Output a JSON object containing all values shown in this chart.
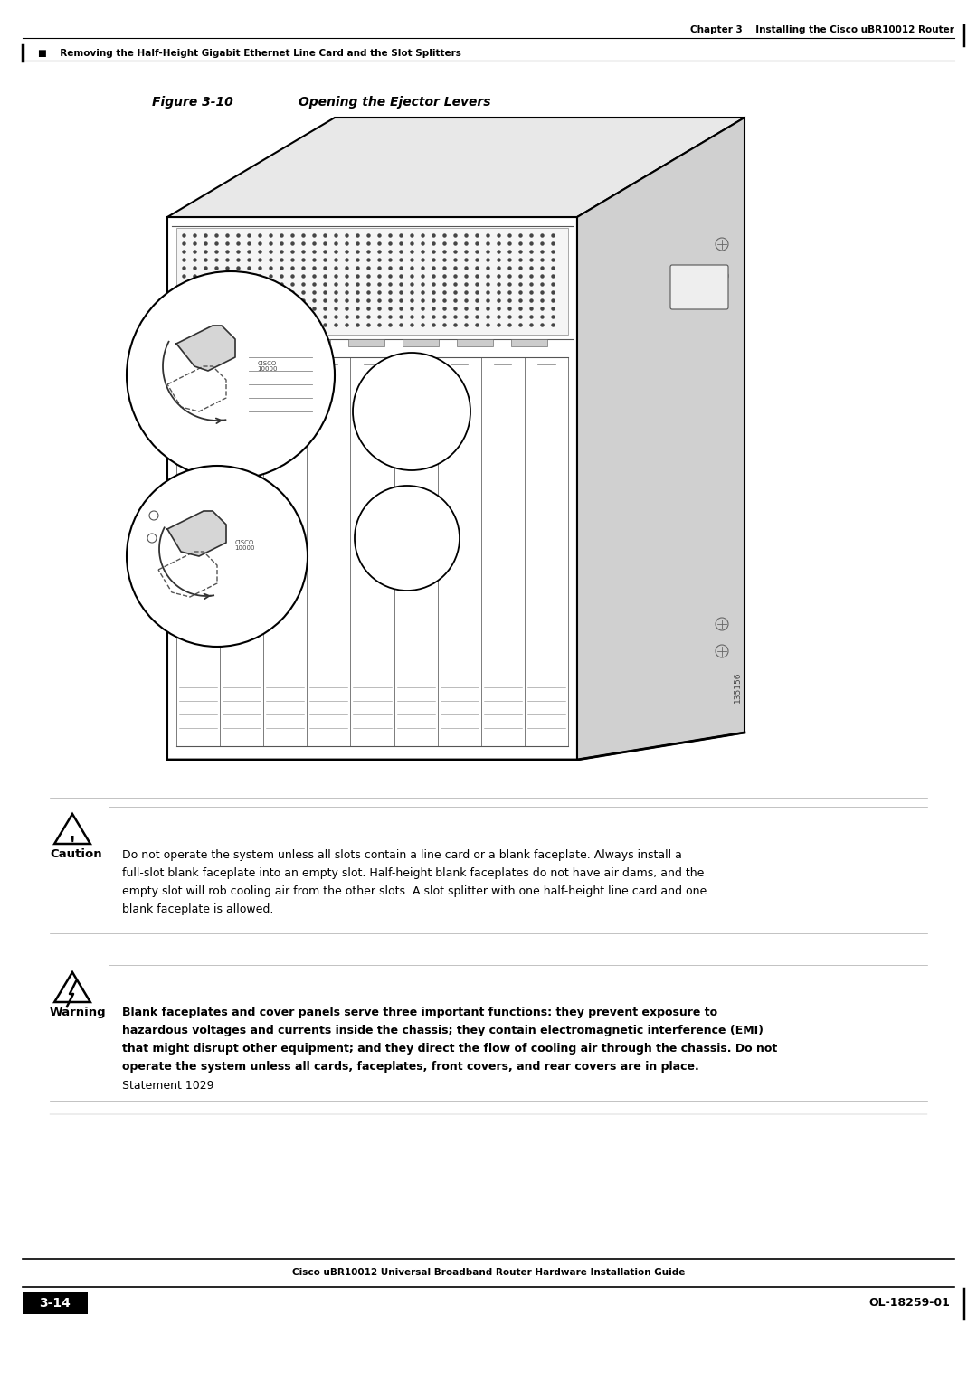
{
  "page_bg": "#ffffff",
  "top_header_text": "Chapter 3    Installing the Cisco uBR10012 Router",
  "top_subheader_text": "■    Removing the Half-Height Gigabit Ethernet Line Card and the Slot Splitters",
  "figure_label": "Figure 3-10",
  "figure_title": "Opening the Ejector Levers",
  "figure_number_vertical": "135156",
  "caution_label": "Caution",
  "caution_lines": [
    "Do not operate the system unless all slots contain a line card or a blank faceplate. Always install a",
    "full-slot blank faceplate into an empty slot. Half-height blank faceplates do not have air dams, and the",
    "empty slot will rob cooling air from the other slots. A slot splitter with one half-height line card and one",
    "blank faceplate is allowed."
  ],
  "warning_label": "Warning",
  "warning_bold_lines": [
    "Blank faceplates and cover panels serve three important functions: they prevent exposure to",
    "hazardous voltages and currents inside the chassis; they contain electromagnetic interference (EMI)",
    "that might disrupt other equipment; and they direct the flow of cooling air through the chassis. Do not",
    "operate the system unless all cards, faceplates, front covers, and rear covers are in place."
  ],
  "warning_text_normal": "Statement 1029",
  "footer_left_box": "3-14",
  "footer_center": "Cisco uBR10012 Universal Broadband Router Hardware Installation Guide",
  "footer_right": "OL-18259-01",
  "text_color": "#000000"
}
